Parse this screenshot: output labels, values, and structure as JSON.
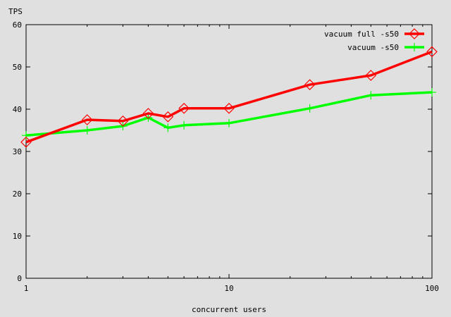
{
  "chart_data": {
    "type": "line",
    "title": "",
    "xlabel": "concurrent users",
    "ylabel": "TPS",
    "xscale": "log",
    "xlim": [
      1,
      100
    ],
    "ylim": [
      0,
      60
    ],
    "xticks": [
      1,
      10,
      100
    ],
    "yticks": [
      0,
      10,
      20,
      30,
      40,
      50,
      60
    ],
    "grid": false,
    "legend_position": "top-right",
    "series": [
      {
        "name": "vacuum full -s50",
        "color": "#ff0000",
        "marker": "diamond",
        "x": [
          1,
          2,
          3,
          4,
          5,
          6,
          10,
          25,
          50,
          100
        ],
        "y": [
          32.2,
          37.5,
          37.2,
          39.0,
          38.2,
          40.2,
          40.2,
          45.8,
          48.0,
          53.6
        ]
      },
      {
        "name": "vacuum -s50",
        "color": "#00ff00",
        "marker": "plus",
        "x": [
          1,
          2,
          3,
          4,
          5,
          6,
          10,
          25,
          50,
          100
        ],
        "y": [
          33.8,
          35.0,
          36.0,
          38.0,
          35.6,
          36.2,
          36.7,
          40.2,
          43.3,
          44.0
        ]
      }
    ]
  }
}
